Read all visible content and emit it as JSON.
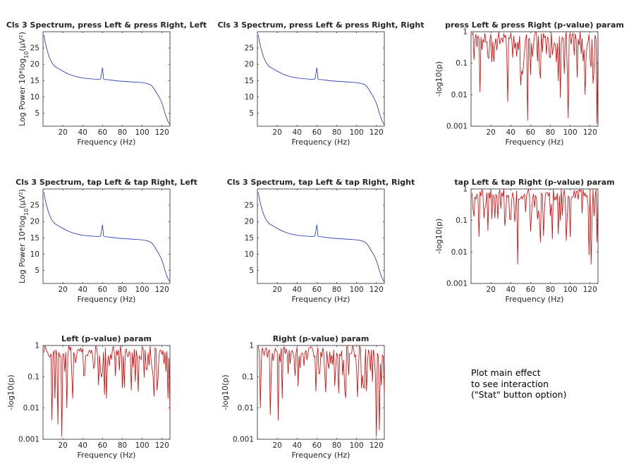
{
  "chart_data": [
    {
      "type": "line",
      "title": "Cls 3 Spectrum, press Left & press Right, Left",
      "xlabel": "Frequency (Hz)",
      "ylabel": "Log Power 10*log_{10}(μV²)",
      "xlim": [
        0,
        128
      ],
      "ylim": [
        1,
        30
      ],
      "x_ticks": [
        20,
        40,
        60,
        80,
        100,
        120
      ],
      "y_ticks": [
        5,
        10,
        15,
        20,
        25
      ],
      "color": "#1a2db3",
      "x": [
        1,
        2,
        4,
        6,
        8,
        10,
        12,
        16,
        20,
        25,
        30,
        35,
        40,
        45,
        50,
        55,
        58,
        59,
        60,
        61,
        62,
        65,
        70,
        75,
        80,
        85,
        90,
        95,
        100,
        105,
        108,
        110,
        112,
        114,
        116,
        118,
        119,
        120,
        121,
        122,
        123,
        124,
        125,
        126,
        127,
        128
      ],
      "values": [
        29,
        27,
        24.5,
        22.5,
        21,
        20,
        19.3,
        18.6,
        17.9,
        17.1,
        16.5,
        16.1,
        15.8,
        15.6,
        15.5,
        15.4,
        15.5,
        17.2,
        19.0,
        15.6,
        15.3,
        15.3,
        15.1,
        14.9,
        14.8,
        14.7,
        14.6,
        14.5,
        14.4,
        14.1,
        13.8,
        13.3,
        12.5,
        11.5,
        10.5,
        9.4,
        8.8,
        8.0,
        7.1,
        6.0,
        5.0,
        4.1,
        3.2,
        2.5,
        1.9,
        1.5
      ]
    },
    {
      "type": "line",
      "title": "Cls 3 Spectrum, press Left & press Right, Right",
      "xlabel": "Frequency (Hz)",
      "ylabel": "",
      "xlim": [
        0,
        128
      ],
      "ylim": [
        1,
        30
      ],
      "x_ticks": [
        20,
        40,
        60,
        80,
        100,
        120
      ],
      "y_ticks": [
        5,
        10,
        15,
        20,
        25
      ],
      "color": "#1a2db3",
      "x": [
        1,
        2,
        4,
        6,
        8,
        10,
        12,
        16,
        20,
        25,
        30,
        35,
        40,
        45,
        50,
        55,
        58,
        59,
        60,
        61,
        62,
        65,
        70,
        75,
        80,
        85,
        90,
        95,
        100,
        105,
        108,
        110,
        112,
        114,
        116,
        118,
        119,
        120,
        121,
        122,
        123,
        124,
        125,
        126,
        127,
        128
      ],
      "values": [
        29,
        27,
        24.5,
        22.5,
        21,
        20,
        19.3,
        18.6,
        17.9,
        17.1,
        16.5,
        16.1,
        15.8,
        15.6,
        15.5,
        15.4,
        15.5,
        17.2,
        19.0,
        15.6,
        15.3,
        15.3,
        15.1,
        14.9,
        14.8,
        14.7,
        14.6,
        14.5,
        14.4,
        14.1,
        13.8,
        13.3,
        12.5,
        11.5,
        10.5,
        9.4,
        8.8,
        8.0,
        7.1,
        6.0,
        5.0,
        4.1,
        3.2,
        2.5,
        1.9,
        1.5
      ]
    },
    {
      "type": "line",
      "title": "press Left & press Right (p-value) param",
      "xlabel": "Frequency (Hz)",
      "ylabel": "-log10(p)",
      "xlim": [
        0,
        128
      ],
      "ylim": [
        0.001,
        1
      ],
      "yscale": "log",
      "x_ticks": [
        20,
        40,
        60,
        80,
        100,
        120
      ],
      "y_ticks": [
        0.001,
        0.01,
        0.1,
        1
      ],
      "y_ticklabels": [
        "0.001",
        "0.01",
        "0.1",
        "1"
      ],
      "color": "#d40000",
      "seed": 11,
      "dips": [
        [
          57,
          0.0015
        ],
        [
          98,
          0.0018
        ],
        [
          127,
          0.0012
        ],
        [
          37,
          0.006
        ],
        [
          9,
          0.012
        ],
        [
          90,
          0.008
        ],
        [
          50,
          0.02
        ],
        [
          115,
          0.01
        ]
      ]
    },
    {
      "type": "line",
      "title": "Cls 3 Spectrum, tap Left & tap Right, Left",
      "xlabel": "Frequency (Hz)",
      "ylabel": "Log Power 10*log_{10}(μV²)",
      "xlim": [
        0,
        128
      ],
      "ylim": [
        1,
        30
      ],
      "x_ticks": [
        20,
        40,
        60,
        80,
        100,
        120
      ],
      "y_ticks": [
        5,
        10,
        15,
        20,
        25
      ],
      "color": "#1a2db3",
      "x": [
        1,
        2,
        4,
        6,
        8,
        10,
        12,
        16,
        20,
        25,
        30,
        35,
        40,
        45,
        50,
        55,
        58,
        59,
        60,
        61,
        62,
        65,
        70,
        75,
        80,
        85,
        90,
        95,
        100,
        105,
        108,
        110,
        112,
        114,
        116,
        118,
        119,
        120,
        121,
        122,
        123,
        124,
        125,
        126,
        127,
        128
      ],
      "values": [
        29,
        27,
        24.5,
        22.5,
        21,
        20,
        19.3,
        18.6,
        17.9,
        17.1,
        16.5,
        16.1,
        15.8,
        15.6,
        15.5,
        15.4,
        15.5,
        17.2,
        19.0,
        15.6,
        15.3,
        15.3,
        15.1,
        14.9,
        14.8,
        14.7,
        14.6,
        14.5,
        14.4,
        14.1,
        13.8,
        13.3,
        12.5,
        11.5,
        10.5,
        9.4,
        8.8,
        8.0,
        7.1,
        6.0,
        5.0,
        4.1,
        3.2,
        2.5,
        1.9,
        1.5
      ]
    },
    {
      "type": "line",
      "title": "Cls 3 Spectrum, tap Left & tap Right, Right",
      "xlabel": "Frequency (Hz)",
      "ylabel": "",
      "xlim": [
        0,
        128
      ],
      "ylim": [
        1,
        30
      ],
      "x_ticks": [
        20,
        40,
        60,
        80,
        100,
        120
      ],
      "y_ticks": [
        5,
        10,
        15,
        20,
        25
      ],
      "color": "#1a2db3",
      "x": [
        1,
        2,
        4,
        6,
        8,
        10,
        12,
        16,
        20,
        25,
        30,
        35,
        40,
        45,
        50,
        55,
        58,
        59,
        60,
        61,
        62,
        65,
        70,
        75,
        80,
        85,
        90,
        95,
        100,
        105,
        108,
        110,
        112,
        114,
        116,
        118,
        119,
        120,
        121,
        122,
        123,
        124,
        125,
        126,
        127,
        128
      ],
      "values": [
        29,
        27,
        24.5,
        22.5,
        21,
        20,
        19.3,
        18.6,
        17.9,
        17.1,
        16.5,
        16.1,
        15.8,
        15.6,
        15.5,
        15.4,
        15.5,
        17.2,
        19.0,
        15.6,
        15.3,
        15.3,
        15.1,
        14.9,
        14.8,
        14.7,
        14.6,
        14.5,
        14.4,
        14.1,
        13.8,
        13.3,
        12.5,
        11.5,
        10.5,
        9.4,
        8.8,
        8.0,
        7.1,
        6.0,
        5.0,
        4.1,
        3.2,
        2.5,
        1.9,
        1.5
      ]
    },
    {
      "type": "line",
      "title": "tap Left & tap Right (p-value) param",
      "xlabel": "Frequency (Hz)",
      "ylabel": "-log10(p)",
      "xlim": [
        0,
        128
      ],
      "ylim": [
        0.001,
        1
      ],
      "yscale": "log",
      "x_ticks": [
        20,
        40,
        60,
        80,
        100,
        120
      ],
      "y_ticks": [
        0.001,
        0.01,
        0.1,
        1
      ],
      "y_ticklabels": [
        "0.001",
        "0.01",
        "0.1",
        "1"
      ],
      "color": "#d40000",
      "seed": 23,
      "dips": [
        [
          47,
          0.004
        ],
        [
          121,
          0.004
        ],
        [
          119,
          0.008
        ],
        [
          8,
          0.03
        ],
        [
          70,
          0.02
        ],
        [
          100,
          0.03
        ]
      ]
    },
    {
      "type": "line",
      "title": "Left (p-value) param",
      "xlabel": "Frequency (Hz)",
      "ylabel": "-log10(p)",
      "xlim": [
        0,
        128
      ],
      "ylim": [
        0.001,
        1
      ],
      "yscale": "log",
      "x_ticks": [
        20,
        40,
        60,
        80,
        100,
        120
      ],
      "y_ticks": [
        0.001,
        0.01,
        0.1,
        1
      ],
      "y_ticklabels": [
        "0.001",
        "0.01",
        "0.1",
        "1"
      ],
      "color": "#d40000",
      "seed": 37,
      "dips": [
        [
          19,
          0.0012
        ],
        [
          9,
          0.004
        ],
        [
          15,
          0.003
        ],
        [
          128,
          0.008
        ],
        [
          24,
          0.01
        ],
        [
          30,
          0.02
        ],
        [
          12,
          0.02
        ],
        [
          126,
          0.02
        ]
      ]
    },
    {
      "type": "line",
      "title": "Right (p-value) param",
      "xlabel": "Frequency (Hz)",
      "ylabel": "-log10(p)",
      "xlim": [
        0,
        128
      ],
      "ylim": [
        0.001,
        1
      ],
      "yscale": "log",
      "x_ticks": [
        20,
        40,
        60,
        80,
        100,
        120
      ],
      "y_ticks": [
        0.001,
        0.01,
        0.1,
        1
      ],
      "y_ticklabels": [
        "0.001",
        "0.01",
        "0.1",
        "1"
      ],
      "color": "#d40000",
      "seed": 53,
      "dips": [
        [
          120,
          0.0012
        ],
        [
          123,
          0.002
        ],
        [
          21,
          0.004
        ],
        [
          3,
          0.01
        ],
        [
          13,
          0.006
        ],
        [
          25,
          0.02
        ],
        [
          128,
          0.03
        ]
      ]
    }
  ],
  "note": {
    "lines": [
      "Plot main effect",
      "to see interaction",
      "(\"Stat\" button option)"
    ]
  }
}
